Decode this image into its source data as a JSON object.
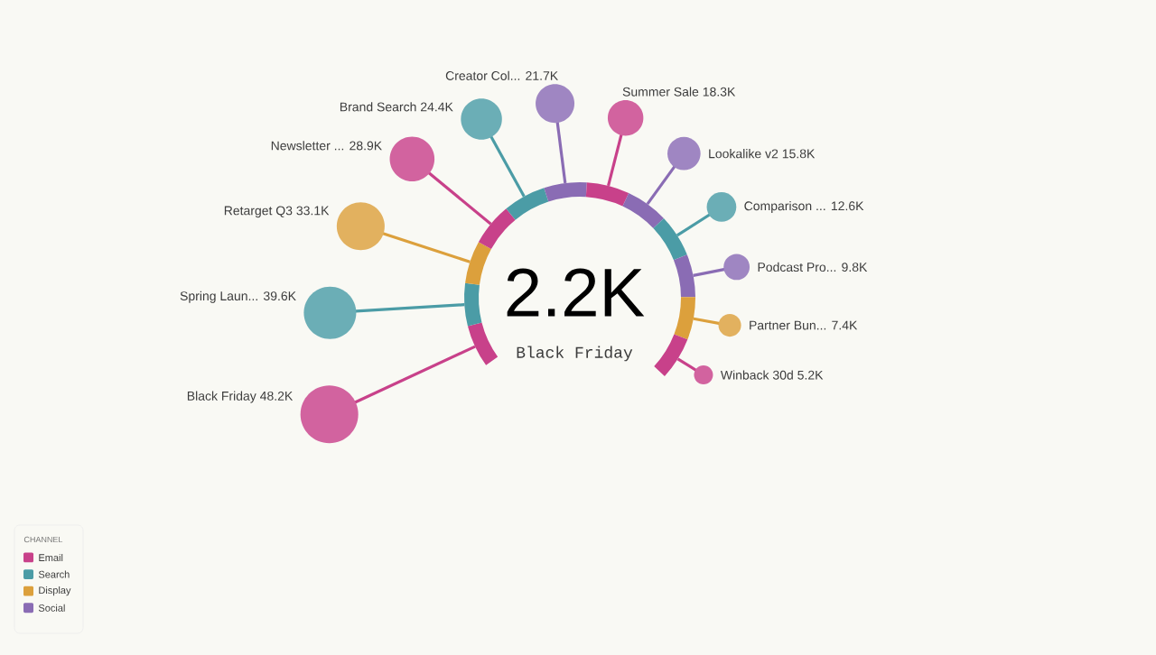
{
  "chart_data": {
    "type": "other",
    "categories": [
      "Black Friday",
      "Spring Laun...",
      "Retarget Q3",
      "Newsletter ...",
      "Brand Search",
      "Creator Col...",
      "Summer Sale",
      "Lookalike v2",
      "Comparison ...",
      "Podcast Pro...",
      "Partner Bun...",
      "Winback 30d"
    ],
    "series": [
      {
        "name": "Email",
        "color": "#c8418a",
        "values": [
          48200,
          null,
          null,
          28900,
          null,
          null,
          18300,
          null,
          null,
          null,
          null,
          5200
        ],
        "value_labels": [
          "48.2K",
          null,
          null,
          "28.9K",
          null,
          null,
          "18.3K",
          null,
          null,
          null,
          null,
          "5.2K"
        ]
      },
      {
        "name": "Search",
        "color": "#4b9ca6",
        "values": [
          null,
          39600,
          null,
          null,
          24400,
          null,
          null,
          null,
          12600,
          null,
          null,
          null
        ],
        "value_labels": [
          null,
          "39.6K",
          null,
          null,
          "24.4K",
          null,
          null,
          null,
          "12.6K",
          null,
          null,
          null
        ]
      },
      {
        "name": "Display",
        "color": "#dca03c",
        "values": [
          null,
          null,
          33100,
          null,
          null,
          null,
          null,
          null,
          null,
          null,
          7400,
          null
        ],
        "value_labels": [
          null,
          null,
          "33.1K",
          null,
          null,
          null,
          null,
          null,
          null,
          null,
          "7.4K",
          null
        ]
      },
      {
        "name": "Social",
        "color": "#8a6cb4",
        "values": [
          null,
          null,
          null,
          null,
          null,
          21700,
          null,
          15800,
          null,
          9800,
          null,
          null
        ],
        "value_labels": [
          null,
          null,
          null,
          null,
          null,
          "21.7K",
          null,
          "15.8K",
          null,
          "9.8K",
          null,
          null
        ]
      }
    ],
    "legend": "bottom left",
    "legend_title": "CHANNEL",
    "annotations": [
      "2.2K",
      "Black Friday"
    ]
  }
}
